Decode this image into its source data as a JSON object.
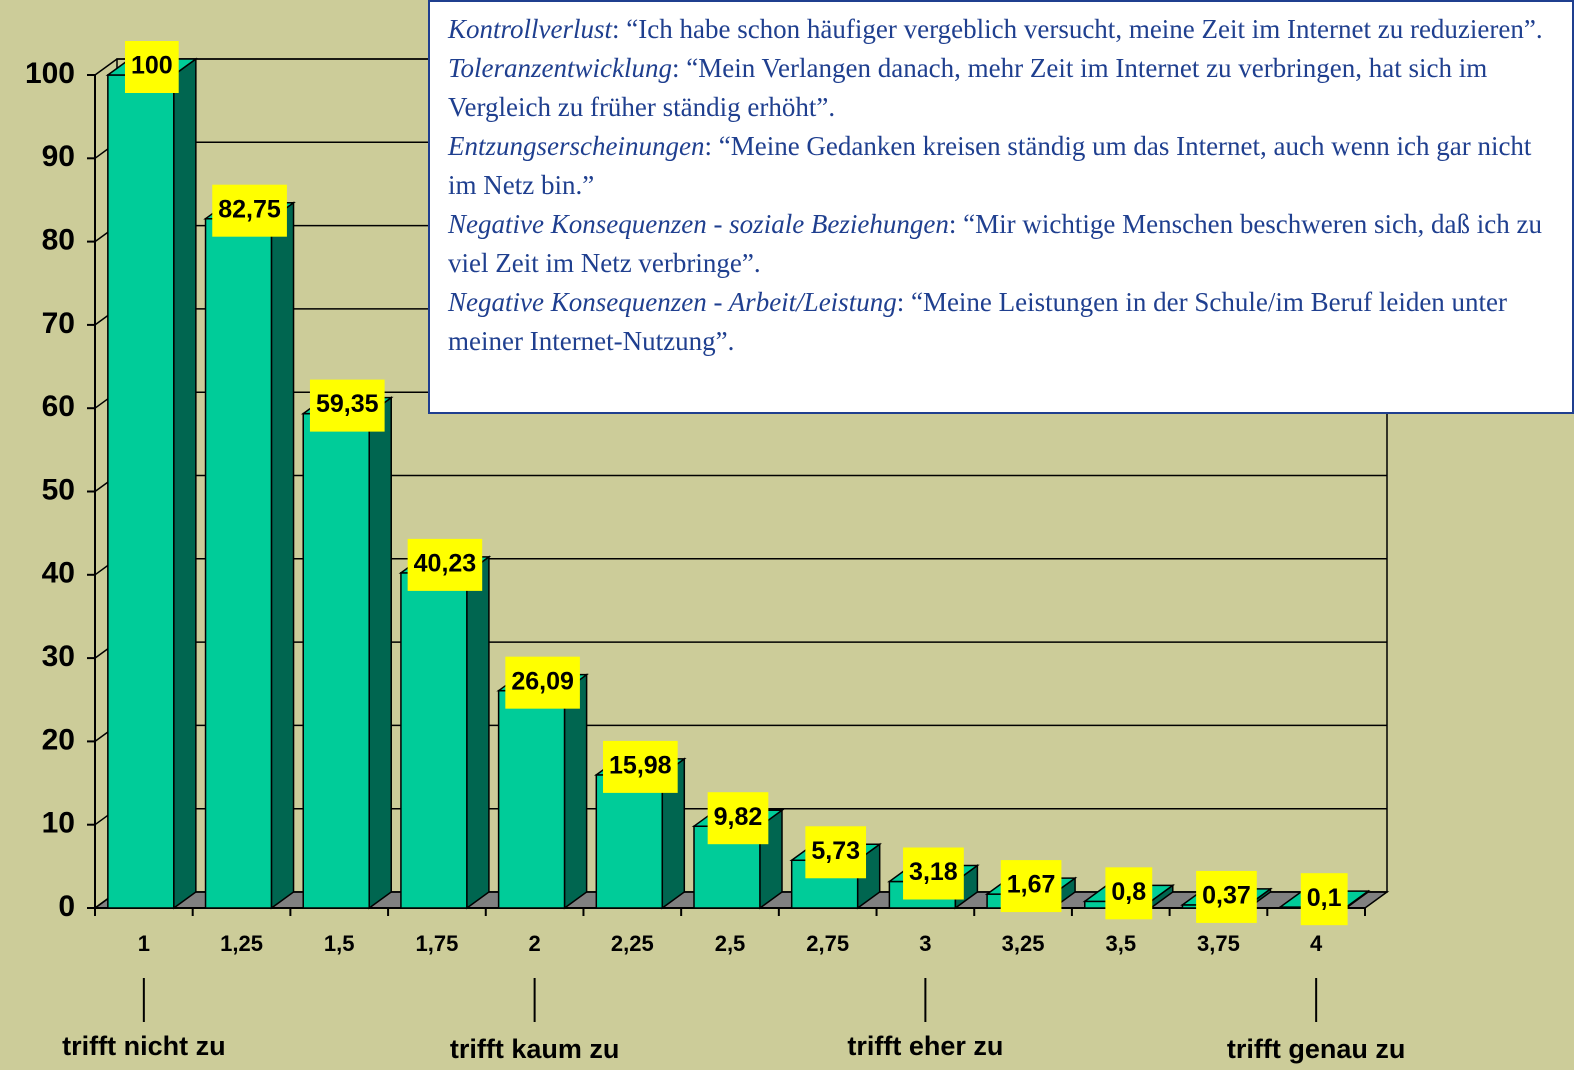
{
  "chart_data": {
    "type": "bar3d",
    "categories": [
      "1",
      "1,25",
      "1,5",
      "1,75",
      "2",
      "2,25",
      "2,5",
      "2,75",
      "3",
      "3,25",
      "3,5",
      "3,75",
      "4"
    ],
    "values": [
      100,
      82.75,
      59.35,
      40.23,
      26.09,
      15.98,
      9.82,
      5.73,
      3.18,
      1.67,
      0.8,
      0.37,
      0.1
    ],
    "value_labels": [
      "100",
      "82,75",
      "59,35",
      "40,23",
      "26,09",
      "15,98",
      "9,82",
      "5,73",
      "3,18",
      "1,67",
      "0,8",
      "0,37",
      "0,1"
    ],
    "color": "#00cc99",
    "side_color": "#006650",
    "label_color": "#ffff00",
    "ylim": [
      0,
      100
    ],
    "yticks": [
      0,
      10,
      20,
      30,
      40,
      50,
      60,
      70,
      80,
      90,
      100
    ],
    "grid": true,
    "scale_labels": [
      {
        "label": "trifft nicht zu",
        "at": "1"
      },
      {
        "label": "trifft kaum zu",
        "at": "2"
      },
      {
        "label": "trifft eher zu",
        "at": "3"
      },
      {
        "label": "trifft genau zu",
        "at": "4"
      }
    ],
    "annotations": [
      {
        "term": "Kontrollverlust",
        "text": ": “Ich habe schon häufiger vergeblich versucht, meine Zeit im Internet zu reduzieren”."
      },
      {
        "term": "Toleranzentwicklung",
        "text": ": “Mein Verlangen danach, mehr Zeit im Internet zu verbringen, hat sich im Vergleich zu früher ständig erhöht”."
      },
      {
        "term": "Entzungserscheinungen",
        "text": ": “Meine Gedanken kreisen ständig um das Internet, auch wenn ich gar nicht im Netz bin.”"
      },
      {
        "term": "Negative Konsequenzen - soziale Beziehungen",
        "text": ": “Mir wichtige Menschen beschweren sich, daß ich zu viel Zeit im Netz verbringe”."
      },
      {
        "term": "Negative Konsequenzen - Arbeit/Leistung",
        "text": ": “Meine Leistungen in der Schule/im Beruf leiden unter meiner Internet-Nutzung”."
      }
    ]
  }
}
